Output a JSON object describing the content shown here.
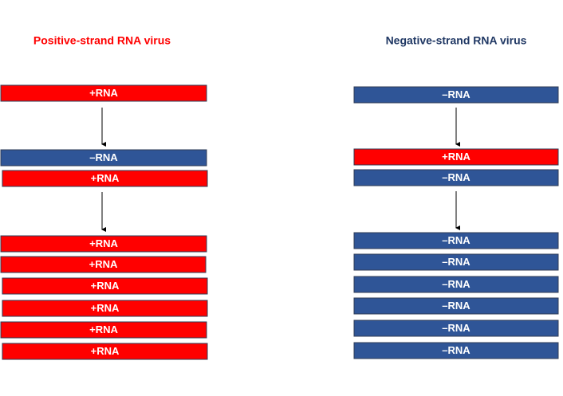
{
  "columns": [
    {
      "title": "Positive-strand RNA virus",
      "title_color": "#ff0000",
      "bars": [
        {
          "label": "+RNA",
          "color": "#ff0000"
        },
        {
          "label": "–RNA",
          "color": "#2f5597"
        },
        {
          "label": "+RNA",
          "color": "#ff0000"
        },
        {
          "label": "+RNA",
          "color": "#ff0000"
        },
        {
          "label": "+RNA",
          "color": "#ff0000"
        },
        {
          "label": "+RNA",
          "color": "#ff0000"
        },
        {
          "label": "+RNA",
          "color": "#ff0000"
        },
        {
          "label": "+RNA",
          "color": "#ff0000"
        },
        {
          "label": "+RNA",
          "color": "#ff0000"
        }
      ]
    },
    {
      "title": "Negative-strand RNA virus",
      "title_color": "#203864",
      "bars": [
        {
          "label": "–RNA",
          "color": "#2f5597"
        },
        {
          "label": "+RNA",
          "color": "#ff0000"
        },
        {
          "label": "–RNA",
          "color": "#2f5597"
        },
        {
          "label": "–RNA",
          "color": "#2f5597"
        },
        {
          "label": "–RNA",
          "color": "#2f5597"
        },
        {
          "label": "–RNA",
          "color": "#2f5597"
        },
        {
          "label": "–RNA",
          "color": "#2f5597"
        },
        {
          "label": "–RNA",
          "color": "#2f5597"
        },
        {
          "label": "–RNA",
          "color": "#2f5597"
        }
      ]
    }
  ]
}
